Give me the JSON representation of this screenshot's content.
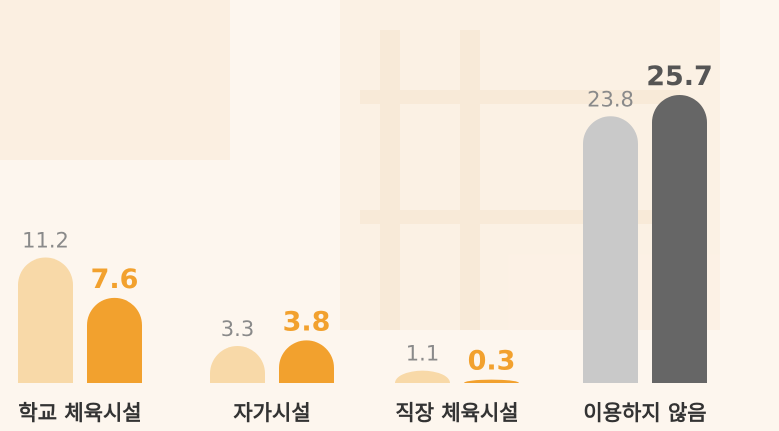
{
  "chart_data": {
    "type": "bar",
    "categories": [
      "학교 체육시설",
      "자가시설",
      "직장 체육시설",
      "이용하지 않음"
    ],
    "series": [
      {
        "values": [
          11.2,
          3.3,
          1.1,
          23.8
        ],
        "colors": [
          "#f8d9a8",
          "#f8d9a8",
          "#f8d9a8",
          "#c9c9c9"
        ],
        "label_colors": [
          "#8a8a8a",
          "#8a8a8a",
          "#8a8a8a",
          "#8a8a8a"
        ]
      },
      {
        "values": [
          7.6,
          3.8,
          0.3,
          25.7
        ],
        "colors": [
          "#f2a12e",
          "#f2a12e",
          "#f2a12e",
          "#666666"
        ],
        "label_colors": [
          "#f2a12e",
          "#f2a12e",
          "#f2a12e",
          "#555555"
        ]
      }
    ]
  }
}
